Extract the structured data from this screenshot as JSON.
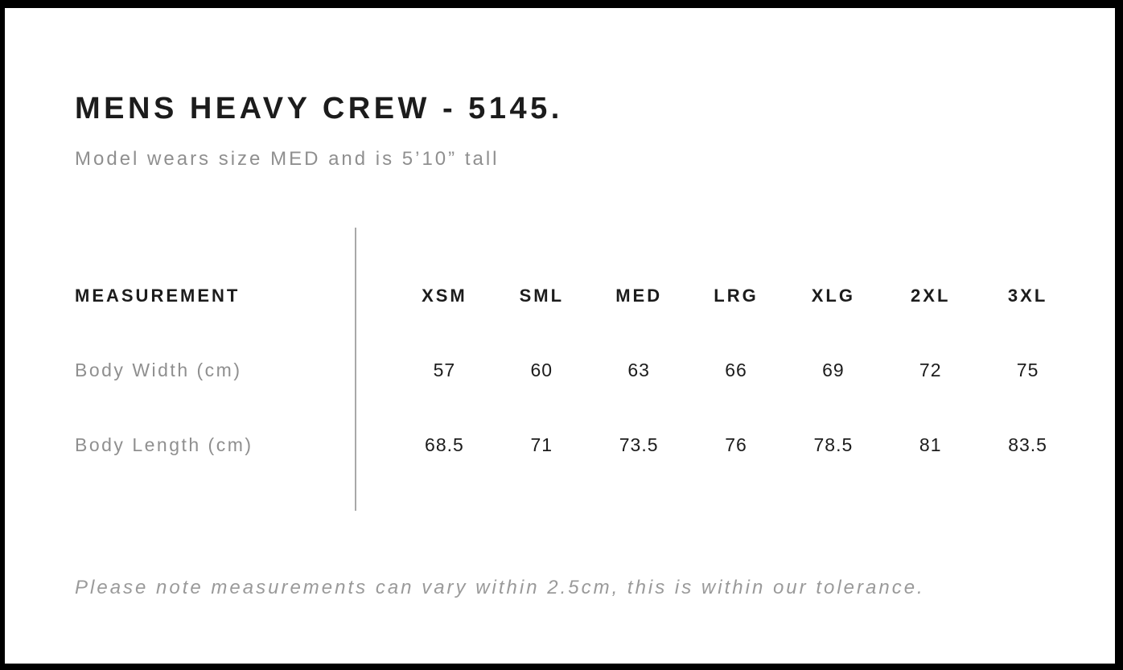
{
  "page": {
    "title": "MENS HEAVY CREW - 5145.",
    "subtitle": "Model wears size MED and is 5’10” tall",
    "footnote": "Please note measurements can vary within 2.5cm, this is within our tolerance."
  },
  "size_chart": {
    "header_label": "MEASUREMENT",
    "sizes": [
      "XSM",
      "SML",
      "MED",
      "LRG",
      "XLG",
      "2XL",
      "3XL"
    ],
    "rows": [
      {
        "label": "Body Width (cm)",
        "values": [
          "57",
          "60",
          "63",
          "66",
          "69",
          "72",
          "75"
        ]
      },
      {
        "label": "Body Length (cm)",
        "values": [
          "68.5",
          "71",
          "73.5",
          "76",
          "78.5",
          "81",
          "83.5"
        ]
      }
    ]
  },
  "colors": {
    "frame": "#000000",
    "background": "#ffffff",
    "heading_text": "#1c1c1c",
    "muted_text": "#8f8f8f",
    "divider": "#a9a9a9"
  }
}
